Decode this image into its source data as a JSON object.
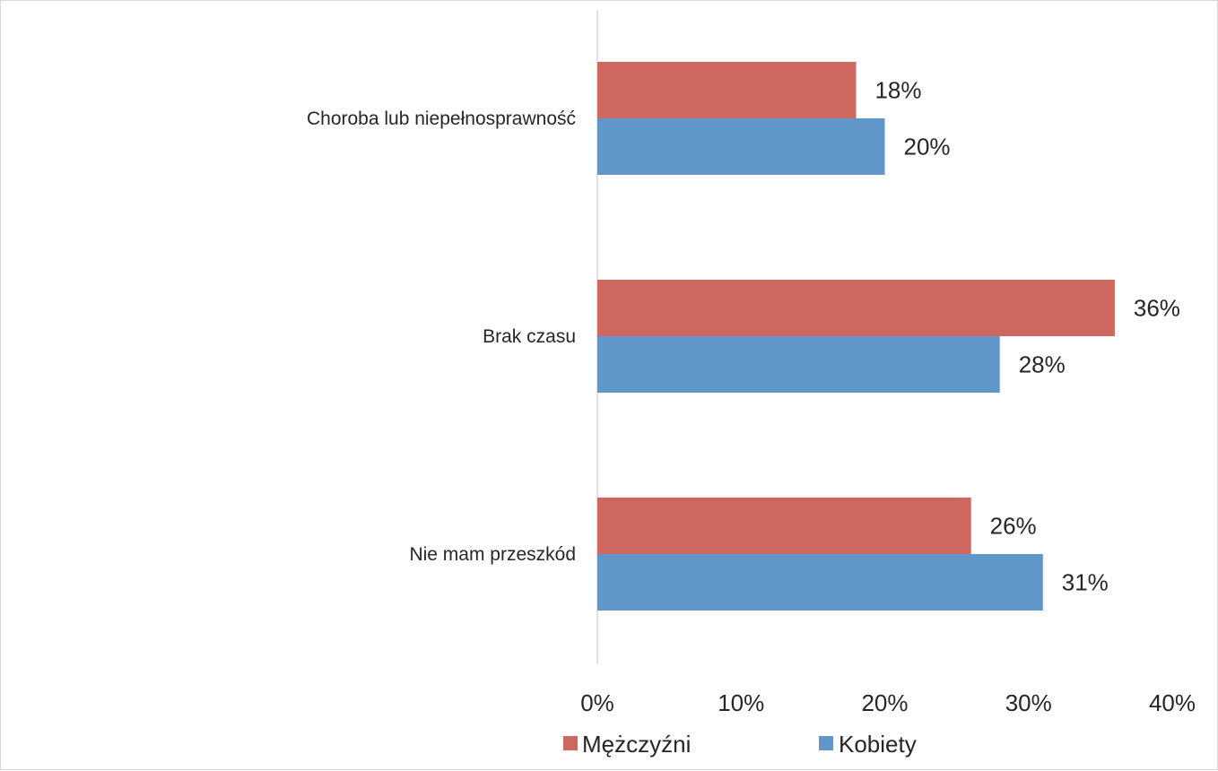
{
  "chart_data": {
    "type": "bar",
    "orientation": "horizontal",
    "categories": [
      "Choroba lub niepełnosprawność",
      "Brak czasu",
      "Nie mam przeszkód"
    ],
    "series": [
      {
        "name": "Mężczyźni",
        "values": [
          18,
          36,
          26
        ],
        "labels": [
          "18%",
          "36%",
          "26%"
        ],
        "color": "#cd6760"
      },
      {
        "name": "Kobiety",
        "values": [
          20,
          28,
          31
        ],
        "labels": [
          "20%",
          "28%",
          "31%"
        ],
        "color": "#6096c8"
      }
    ],
    "xlim": [
      0,
      40
    ],
    "xticks": [
      0,
      10,
      20,
      30,
      40
    ],
    "xtick_labels": [
      "0%",
      "10%",
      "20%",
      "30%",
      "40%"
    ],
    "grid": false,
    "legend_position": "bottom",
    "title": "",
    "xlabel": "",
    "ylabel": "",
    "axis_color": "#d9d9d9"
  }
}
